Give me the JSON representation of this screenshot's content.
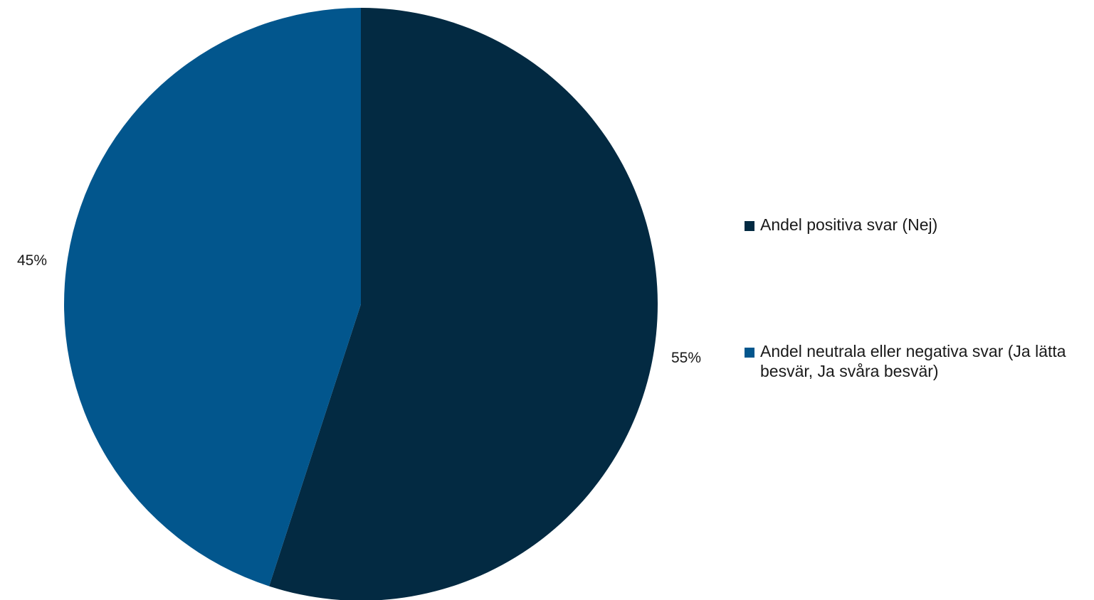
{
  "chart_data": {
    "type": "pie",
    "title": "",
    "slices": [
      {
        "label": "Andel positiva svar (Nej)",
        "value": 55,
        "display": "55%",
        "color": "#032a42"
      },
      {
        "label": "Andel neutrala eller negativa svar (Ja lätta besvär, Ja svåra besvär)",
        "value": 45,
        "display": "45%",
        "color": "#02568d"
      }
    ],
    "start_angle": "12 o'clock",
    "direction": "clockwise",
    "legend_position": "right"
  }
}
